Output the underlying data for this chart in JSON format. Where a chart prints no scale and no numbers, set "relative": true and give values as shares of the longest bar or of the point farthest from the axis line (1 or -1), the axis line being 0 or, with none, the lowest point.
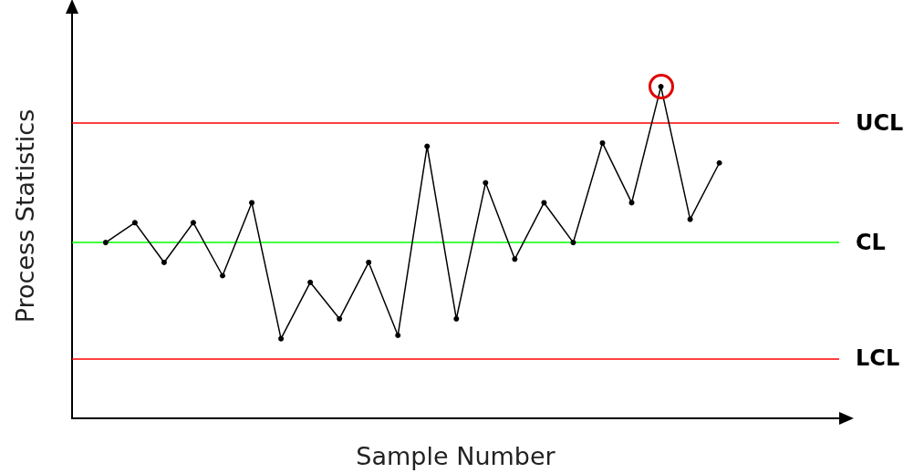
{
  "chart_data": {
    "type": "line",
    "relative": true,
    "xlabel": "Sample Number",
    "ylabel": "Process Statistics",
    "categories": [
      null,
      null,
      null,
      null,
      null,
      null,
      null,
      null,
      null,
      null,
      null,
      null,
      null,
      null,
      null,
      null,
      null,
      null,
      null,
      null,
      null,
      null
    ],
    "series": [
      {
        "color": "#000000",
        "values": [
          0.53,
          0.59,
          0.47,
          0.59,
          0.43,
          0.65,
          0.24,
          0.41,
          0.3,
          0.47,
          0.25,
          0.82,
          0.3,
          0.71,
          0.48,
          0.65,
          0.53,
          0.83,
          0.65,
          1,
          0.6,
          0.77
        ]
      }
    ],
    "ref_lines": [
      {
        "axis": "y",
        "value": 0.89,
        "label": "UCL",
        "color": "#ff0000"
      },
      {
        "axis": "y",
        "value": 0.53,
        "label": "CL",
        "color": "#00ff00"
      },
      {
        "axis": "y",
        "value": 0.18,
        "label": "LCL",
        "color": "#ff0000"
      }
    ],
    "marker": "circle",
    "line_style": "solid",
    "grid": false
  }
}
